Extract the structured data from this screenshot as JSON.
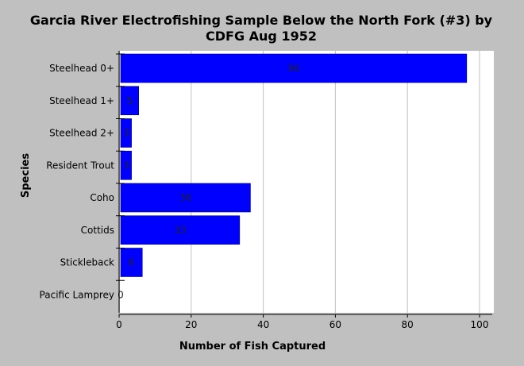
{
  "chart_data": {
    "type": "bar",
    "orientation": "horizontal",
    "title_line1": "Garcia River Electrofishing Sample Below the North Fork (#3) by",
    "title_line2": "CDFG Aug 1952",
    "xlabel": "Number of Fish Captured",
    "ylabel": "Species",
    "categories": [
      "Steelhead 0+",
      "Steelhead 1+",
      "Steelhead 2+",
      "Resident Trout",
      "Coho",
      "Cottids",
      "Stickleback",
      "Pacific Lamprey"
    ],
    "values": [
      96,
      5,
      3,
      3,
      36,
      33,
      6,
      0
    ],
    "value_labels": [
      "96",
      "5",
      "3",
      "3",
      "36",
      "33",
      "6",
      "0"
    ],
    "xlim": [
      0,
      100
    ],
    "xticks": [
      0,
      20,
      40,
      60,
      80,
      100
    ],
    "xtick_labels": [
      "0",
      "20",
      "40",
      "60",
      "80",
      "100"
    ],
    "grid": "vertical",
    "colors": {
      "bar": "#0000ff",
      "bar_edge": "#00007a",
      "plot_bg": "#ffffff",
      "page_bg": "#c0c0c0",
      "grid": "#c0c0c0"
    }
  }
}
